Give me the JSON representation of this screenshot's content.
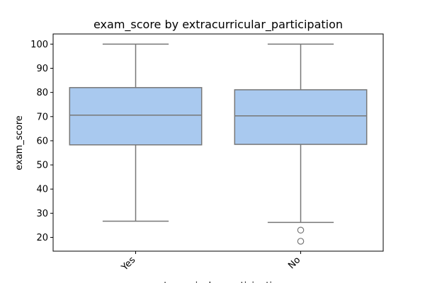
{
  "chart_data": {
    "type": "box",
    "title": "exam_score by extracurricular_participation",
    "xlabel": "extracurricular_participation",
    "ylabel": "exam_score",
    "categories": [
      "Yes",
      "No"
    ],
    "boxes": [
      {
        "category": "Yes",
        "whisker_low": 26.7,
        "q1": 58.3,
        "median": 70.6,
        "q3": 82.0,
        "whisker_high": 100,
        "outliers": []
      },
      {
        "category": "No",
        "whisker_low": 26.2,
        "q1": 58.5,
        "median": 70.3,
        "q3": 81.1,
        "whisker_high": 100,
        "outliers": [
          23.0,
          18.4
        ]
      }
    ],
    "ylim": [
      14.3,
      104.2
    ],
    "yticks": [
      20,
      30,
      40,
      50,
      60,
      70,
      80,
      90,
      100
    ],
    "grid": false,
    "box_color": "#a9c9ef",
    "line_color": "#777777"
  }
}
